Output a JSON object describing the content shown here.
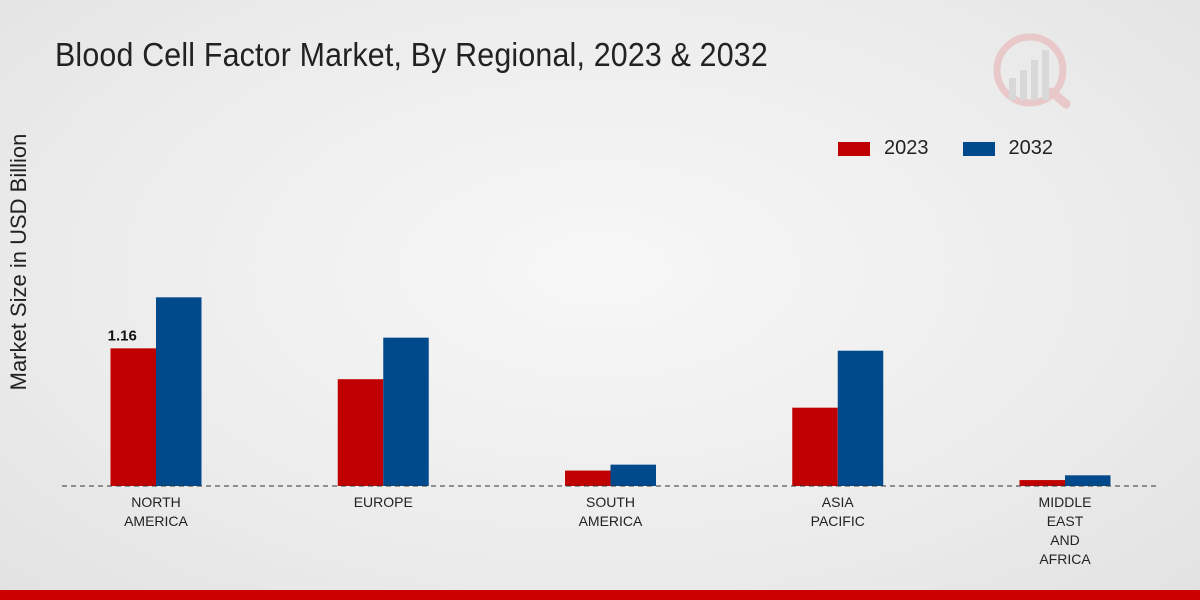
{
  "chart_data": {
    "type": "bar",
    "title": "Blood Cell Factor Market, By Regional, 2023 & 2032",
    "xlabel": "",
    "ylabel": "Market Size in USD Billion",
    "categories": [
      [
        "NORTH",
        "AMERICA"
      ],
      [
        "EUROPE"
      ],
      [
        "SOUTH",
        "AMERICA"
      ],
      [
        "ASIA",
        "PACIFIC"
      ],
      [
        "MIDDLE",
        "EAST",
        "AND",
        "AFRICA"
      ]
    ],
    "series": [
      {
        "name": "2023",
        "color": "#c00000",
        "values": [
          1.16,
          0.9,
          0.13,
          0.66,
          0.05
        ]
      },
      {
        "name": "2032",
        "color": "#004a8c",
        "values": [
          1.59,
          1.25,
          0.18,
          1.14,
          0.09
        ]
      }
    ],
    "data_labels": [
      {
        "series": 0,
        "index": 0,
        "text": "1.16"
      }
    ],
    "ylim": [
      0,
      3.0
    ],
    "legend_position": "top-right",
    "grid": false
  }
}
